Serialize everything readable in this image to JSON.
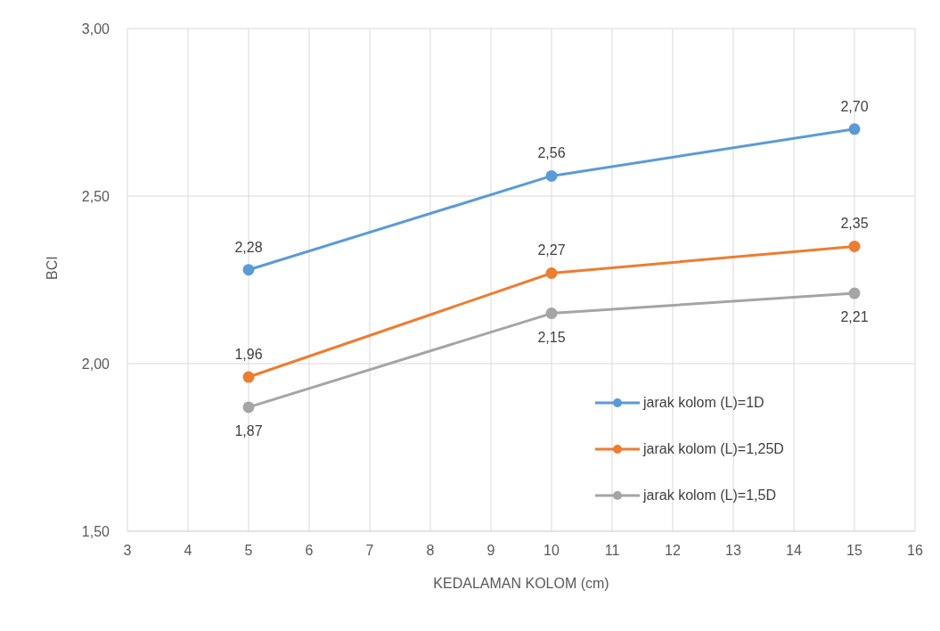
{
  "chart_data": {
    "type": "line",
    "xlabel": "KEDALAMAN KOLOM (cm)",
    "ylabel": "BCI",
    "x": [
      5,
      10,
      15
    ],
    "series": [
      {
        "name": "jarak kolom (L)=1D",
        "color": "#5b9bd5",
        "values": [
          2.28,
          2.56,
          2.7
        ],
        "value_labels": [
          "2,28",
          "2,56",
          "2,70"
        ]
      },
      {
        "name": "jarak kolom (L)=1,25D",
        "color": "#ed7d31",
        "values": [
          1.96,
          2.27,
          2.35
        ],
        "value_labels": [
          "1,96",
          "2,27",
          "2,35"
        ]
      },
      {
        "name": "jarak kolom (L)=1,5D",
        "color": "#a5a5a5",
        "values": [
          1.87,
          2.15,
          2.21
        ],
        "value_labels": [
          "1,87",
          "2,15",
          "2,21"
        ]
      }
    ],
    "xlim": [
      3,
      16
    ],
    "xticks": [
      3,
      4,
      5,
      6,
      7,
      8,
      9,
      10,
      11,
      12,
      13,
      14,
      15,
      16
    ],
    "ylim": [
      1.5,
      3
    ],
    "yticks": [
      {
        "value": 1.5,
        "label": "1,50"
      },
      {
        "value": 2,
        "label": "2,00"
      },
      {
        "value": 2.5,
        "label": "2,50"
      },
      {
        "value": 3,
        "label": "3,00"
      }
    ],
    "grid": true,
    "legend": "bottom right",
    "marker": "circle",
    "line_style": "solid"
  }
}
